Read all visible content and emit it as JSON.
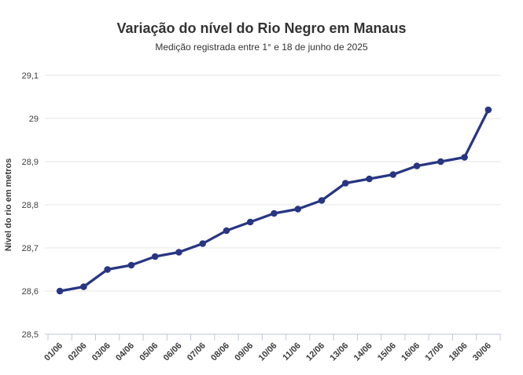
{
  "header": {
    "title": "Variação do nível do Rio Negro em Manaus",
    "subtitle": "Medição registrada entre 1° e 18 de junho de 2025"
  },
  "chart_data": {
    "type": "line",
    "title": "Variação do nível do Rio Negro em Manaus",
    "subtitle": "Medição registrada entre 1° e 18 de junho de 2025",
    "xlabel": "",
    "ylabel": "Nível do rio em metros",
    "categories": [
      "01/06",
      "02/06",
      "03/06",
      "04/06",
      "05/06",
      "06/06",
      "07/06",
      "08/06",
      "09/06",
      "10/06",
      "11/06",
      "12/06",
      "13/06",
      "14/06",
      "15/06",
      "16/06",
      "17/06",
      "18/06",
      "30/06"
    ],
    "values": [
      28.6,
      28.61,
      28.65,
      28.66,
      28.68,
      28.69,
      28.71,
      28.74,
      28.76,
      28.78,
      28.79,
      28.81,
      28.85,
      28.86,
      28.87,
      28.89,
      28.9,
      28.91,
      29.02
    ],
    "ylim": [
      28.5,
      29.1
    ],
    "ytick_step": 0.1,
    "ytick_labels": [
      "28,5",
      "28,6",
      "28,7",
      "28,8",
      "28,9",
      "29",
      "29,1"
    ],
    "grid": "horizontal",
    "legend": "none",
    "marker": "circle",
    "colors": {
      "line": "#273583",
      "marker": "#273583",
      "gridline": "#e6e6e6",
      "axis": "#bdc7da",
      "title_text": "#333333",
      "tick_text": "#3a3a3a",
      "ytick_text": "#3f3f3f"
    }
  }
}
